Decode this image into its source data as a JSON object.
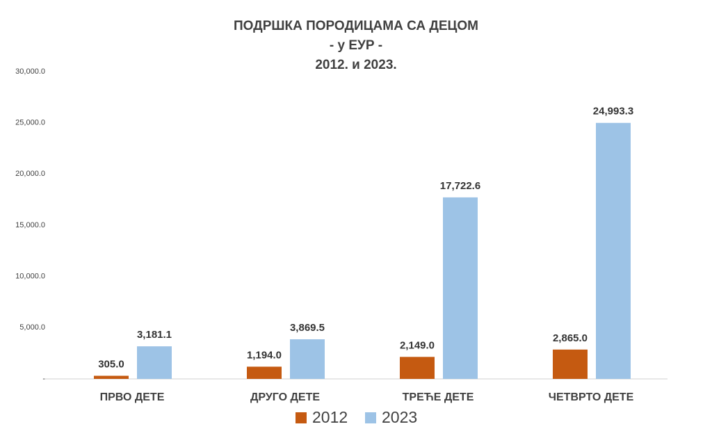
{
  "chart_data": {
    "type": "bar",
    "title": [
      "ПОДРШКА ПОРОДИЦАМА СА ДЕЦОМ",
      "- у ЕУР -",
      "2012. и 2023."
    ],
    "categories": [
      "ПРВО ДЕТЕ",
      "ДРУГО ДЕТЕ",
      "ТРЕЋЕ ДЕТЕ",
      "ЧЕТВРТО ДЕТЕ"
    ],
    "series": [
      {
        "name": "2012",
        "color": "#c55a11",
        "values": [
          305.0,
          1194.0,
          2149.0,
          2865.0
        ],
        "value_labels": [
          "305.0",
          "1,194.0",
          "2,149.0",
          "2,865.0"
        ]
      },
      {
        "name": "2023",
        "color": "#9dc3e6",
        "values": [
          3181.1,
          3869.5,
          17722.6,
          24993.3
        ],
        "value_labels": [
          "3,181.1",
          "3,869.5",
          "17,722.6",
          "24,993.3"
        ]
      }
    ],
    "ylim": [
      0,
      30000
    ],
    "yticks": [
      {
        "value": 0,
        "label": "-"
      },
      {
        "value": 5000,
        "label": "5,000.0"
      },
      {
        "value": 10000,
        "label": "10,000.0"
      },
      {
        "value": 15000,
        "label": "15,000.0"
      },
      {
        "value": 20000,
        "label": "20,000.0"
      },
      {
        "value": 25000,
        "label": "25,000.0"
      },
      {
        "value": 30000,
        "label": "30,000.0"
      }
    ],
    "grid": false,
    "legend": "bottom"
  }
}
